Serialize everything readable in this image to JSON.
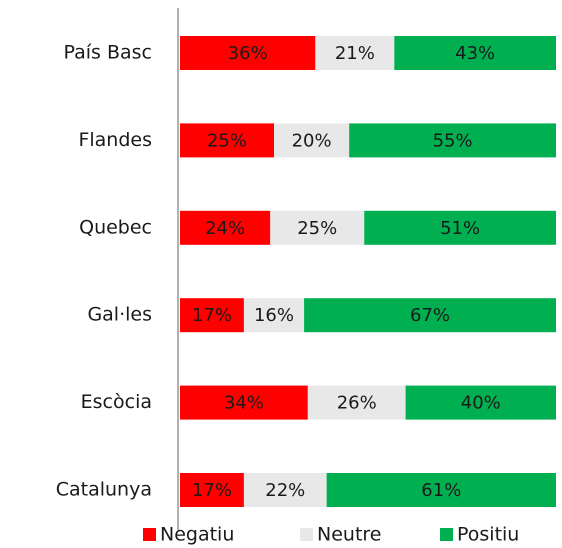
{
  "chart_data": {
    "type": "stacked_barh",
    "categories": [
      "País Basc",
      "Flandes",
      "Quebec",
      "Gal·les",
      "Escòcia",
      "Catalunya"
    ],
    "series": [
      {
        "name": "Negatiu",
        "color": "#ff0000",
        "values": [
          36,
          25,
          24,
          17,
          34,
          17
        ],
        "value_labels": [
          "36%",
          "25%",
          "24%",
          "17%",
          "34%",
          "17%"
        ]
      },
      {
        "name": "Neutre",
        "color": "#e8e8e8",
        "values": [
          21,
          20,
          25,
          16,
          26,
          22
        ],
        "value_labels": [
          "21%",
          "20%",
          "25%",
          "16%",
          "26%",
          "22%"
        ]
      },
      {
        "name": "Positiu",
        "color": "#00b050",
        "values": [
          43,
          55,
          51,
          67,
          40,
          61
        ],
        "value_labels": [
          "43%",
          "55%",
          "51%",
          "67%",
          "40%",
          "61%"
        ]
      }
    ],
    "xlim": [
      0,
      100
    ],
    "legend": "bottom"
  }
}
